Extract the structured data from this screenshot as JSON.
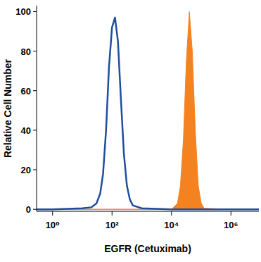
{
  "chart_data": {
    "type": "histogram",
    "x_label": "EGFR (Cetuximab)",
    "y_label": "Relative Cell Number",
    "log": "x",
    "grid": false,
    "x": [
      0.29,
      1,
      10,
      20,
      30,
      40,
      50,
      63,
      79,
      100,
      126,
      158,
      200,
      251,
      316,
      398,
      501,
      1000,
      10000,
      15849,
      19953,
      25119,
      31623,
      39811,
      50119,
      63096,
      79433,
      100000,
      125893,
      1000000,
      8700000
    ],
    "series": [
      {
        "color": "#1f4e9c",
        "type": "line",
        "values": [
          0,
          0,
          0.5,
          1,
          3,
          8,
          18,
          40,
          72,
          92,
          97,
          85,
          55,
          28,
          12,
          5,
          2,
          0.5,
          0,
          0,
          0,
          0,
          0,
          0,
          0,
          0,
          0,
          0,
          0,
          0,
          0
        ]
      },
      {
        "color": "#f58220",
        "type": "area",
        "values": [
          0,
          0,
          0,
          0,
          0,
          0,
          0,
          0,
          0,
          0,
          0,
          0,
          0,
          0,
          0,
          0,
          0,
          0,
          0,
          3,
          12,
          35,
          75,
          100,
          80,
          40,
          12,
          3,
          0.5,
          0,
          0
        ]
      }
    ],
    "xlim": [
      0.29,
      8700000
    ],
    "xticks": [
      {
        "value": 1,
        "label": "10⁰"
      },
      {
        "value": 100,
        "label": "10²"
      },
      {
        "value": 10000,
        "label": "10⁴"
      },
      {
        "value": 1000000,
        "label": "10⁶"
      }
    ],
    "ylim": [
      -1,
      103
    ],
    "yticks": [
      0,
      20,
      40,
      60,
      80,
      100
    ]
  }
}
